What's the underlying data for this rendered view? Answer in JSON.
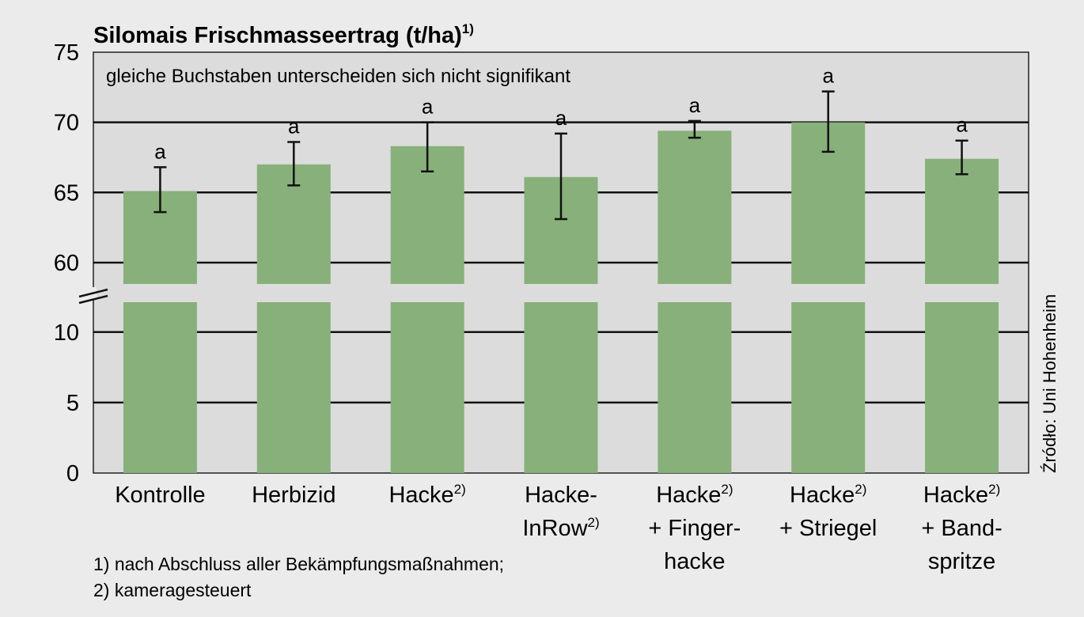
{
  "chart_data": {
    "type": "bar",
    "title": "Silomais Frischmasseertrag (t/ha)",
    "title_superscript": "1)",
    "annotation": "gleiche Buchstaben unterscheiden sich nicht signifikant",
    "y_ticks_upper": [
      "75",
      "70",
      "65",
      "60"
    ],
    "y_ticks_lower": [
      "10",
      "5",
      "0"
    ],
    "ylim_upper": [
      58.3,
      75
    ],
    "ylim_lower": [
      0,
      12
    ],
    "axis_break": true,
    "grid": true,
    "categories": [
      {
        "lines": [
          "Kontrolle"
        ],
        "sup_line": -1
      },
      {
        "lines": [
          "Herbizid"
        ],
        "sup_line": -1
      },
      {
        "lines": [
          "Hacke"
        ],
        "sup_line": 0
      },
      {
        "lines": [
          "Hacke-",
          "InRow"
        ],
        "sup_line": 1
      },
      {
        "lines": [
          "Hacke",
          "+ Finger-",
          "hacke"
        ],
        "sup_line": 0
      },
      {
        "lines": [
          "Hacke",
          "+ Striegel"
        ],
        "sup_line": 0
      },
      {
        "lines": [
          "Hacke",
          "+ Band-",
          "spritze"
        ],
        "sup_line": 0
      }
    ],
    "category_superscript": "2)",
    "values": [
      65.1,
      67.0,
      68.3,
      66.1,
      69.4,
      70.0,
      67.4
    ],
    "error_low": [
      63.6,
      65.5,
      66.5,
      63.1,
      68.9,
      67.9,
      66.3
    ],
    "error_high": [
      66.8,
      68.6,
      70.0,
      69.2,
      70.1,
      72.2,
      68.7
    ],
    "significance": [
      "a",
      "a",
      "a",
      "a",
      "a",
      "a",
      "a"
    ],
    "bar_color": "#88b07a",
    "plot_bg": "#dcdcdc",
    "page_bg": "#ebebeb"
  },
  "footnotes": [
    "1) nach Abschluss aller Bekämpfungsmaßnahmen;",
    "2) kameragesteuert"
  ],
  "source": "Źródło: Uni Hohenheim"
}
